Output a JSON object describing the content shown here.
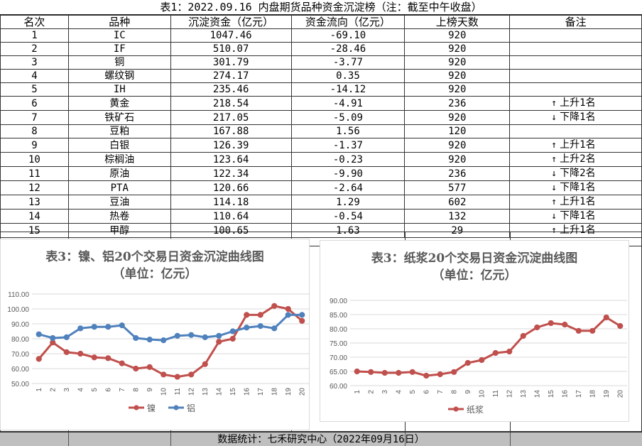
{
  "title": "表1：2022.09.16 内盘期货品种资金沉淀榜（注：截至中午收盘）",
  "table": {
    "headers": [
      "名次",
      "品种",
      "沉淀资金（亿元）",
      "资金流向（亿元）",
      "上榜天数",
      "备注"
    ],
    "rows": [
      {
        "rank": "1",
        "name": "IC",
        "amount": "1047.46",
        "flow": "-69.10",
        "days": "920",
        "arrow": "",
        "note": ""
      },
      {
        "rank": "2",
        "name": "IF",
        "amount": "510.07",
        "flow": "-28.46",
        "days": "920",
        "arrow": "",
        "note": ""
      },
      {
        "rank": "3",
        "name": "铜",
        "amount": "301.79",
        "flow": "-3.77",
        "days": "920",
        "arrow": "",
        "note": ""
      },
      {
        "rank": "4",
        "name": "螺纹钢",
        "amount": "274.17",
        "flow": "0.35",
        "days": "920",
        "arrow": "",
        "note": ""
      },
      {
        "rank": "5",
        "name": "IH",
        "amount": "235.46",
        "flow": "-14.12",
        "days": "920",
        "arrow": "",
        "note": ""
      },
      {
        "rank": "6",
        "name": "黄金",
        "amount": "218.54",
        "flow": "-4.91",
        "days": "236",
        "arrow": "↑",
        "note": "上升1名"
      },
      {
        "rank": "7",
        "name": "铁矿石",
        "amount": "217.05",
        "flow": "-5.09",
        "days": "920",
        "arrow": "↓",
        "note": "下降1名"
      },
      {
        "rank": "8",
        "name": "豆粕",
        "amount": "167.88",
        "flow": "1.56",
        "days": "120",
        "arrow": "",
        "note": ""
      },
      {
        "rank": "9",
        "name": "白银",
        "amount": "126.39",
        "flow": "-1.37",
        "days": "920",
        "arrow": "↑",
        "note": "上升1名"
      },
      {
        "rank": "10",
        "name": "棕榈油",
        "amount": "123.64",
        "flow": "-0.23",
        "days": "920",
        "arrow": "↑",
        "note": "上升2名"
      },
      {
        "rank": "11",
        "name": "原油",
        "amount": "122.34",
        "flow": "-9.90",
        "days": "236",
        "arrow": "↓",
        "note": "下降2名"
      },
      {
        "rank": "12",
        "name": "PTA",
        "amount": "120.66",
        "flow": "-2.64",
        "days": "577",
        "arrow": "↓",
        "note": "下降1名"
      },
      {
        "rank": "13",
        "name": "豆油",
        "amount": "114.18",
        "flow": "1.29",
        "days": "602",
        "arrow": "↑",
        "note": "上升1名"
      },
      {
        "rank": "14",
        "name": "热卷",
        "amount": "110.64",
        "flow": "-0.54",
        "days": "132",
        "arrow": "↓",
        "note": "下降1名"
      },
      {
        "rank": "15",
        "name": "甲醇",
        "amount": "100.65",
        "flow": "1.63",
        "days": "29",
        "arrow": "↑",
        "note": "上升1名"
      }
    ]
  },
  "chart_data": [
    {
      "type": "line",
      "title": "表3：镍、铝20个交易日资金沉淀曲线图",
      "subtitle": "（单位：亿元）",
      "x": [
        "1",
        "2",
        "3",
        "4",
        "5",
        "6",
        "7",
        "8",
        "9",
        "10",
        "11",
        "12",
        "13",
        "14",
        "15",
        "16",
        "17",
        "18",
        "19",
        "20"
      ],
      "ylim": [
        50,
        110
      ],
      "yticks": [
        "50.00",
        "60.00",
        "70.00",
        "80.00",
        "90.00",
        "100.00",
        "110.00"
      ],
      "grid": true,
      "legend": "bottom",
      "series": [
        {
          "name": "镍",
          "color": "#c0504d",
          "values": [
            66.5,
            77.5,
            71.0,
            70.0,
            67.5,
            67.0,
            63.5,
            60.0,
            61.0,
            56.0,
            54.5,
            56.0,
            63.0,
            78.0,
            80.0,
            96.0,
            96.0,
            102.0,
            100.0,
            92.0
          ]
        },
        {
          "name": "铝",
          "color": "#4f81bd",
          "values": [
            83.0,
            80.5,
            81.0,
            87.0,
            88.0,
            88.0,
            89.0,
            80.5,
            79.5,
            79.0,
            82.0,
            82.5,
            81.0,
            82.0,
            85.0,
            87.5,
            88.5,
            87.0,
            96.0,
            96.0
          ]
        }
      ]
    },
    {
      "type": "line",
      "title": "表3：纸浆20个交易日资金沉淀曲线图",
      "subtitle": "（单位：亿元）",
      "x": [
        "1",
        "2",
        "3",
        "4",
        "5",
        "6",
        "7",
        "8",
        "9",
        "10",
        "11",
        "12",
        "13",
        "14",
        "15",
        "16",
        "17",
        "18",
        "19",
        "20"
      ],
      "ylim": [
        60,
        90
      ],
      "yticks": [
        "60.00",
        "65.00",
        "70.00",
        "75.00",
        "80.00",
        "85.00",
        "90.00"
      ],
      "grid": true,
      "legend": "bottom",
      "series": [
        {
          "name": "纸浆",
          "color": "#c0504d",
          "values": [
            65.0,
            64.8,
            64.5,
            64.5,
            64.8,
            63.5,
            64.0,
            64.8,
            68.0,
            69.0,
            71.5,
            72.0,
            77.5,
            80.5,
            82.0,
            81.5,
            79.3,
            79.3,
            84.0,
            81.0
          ]
        }
      ]
    }
  ],
  "footer": "数据统计：七禾研究中心（2022年09月16日）"
}
